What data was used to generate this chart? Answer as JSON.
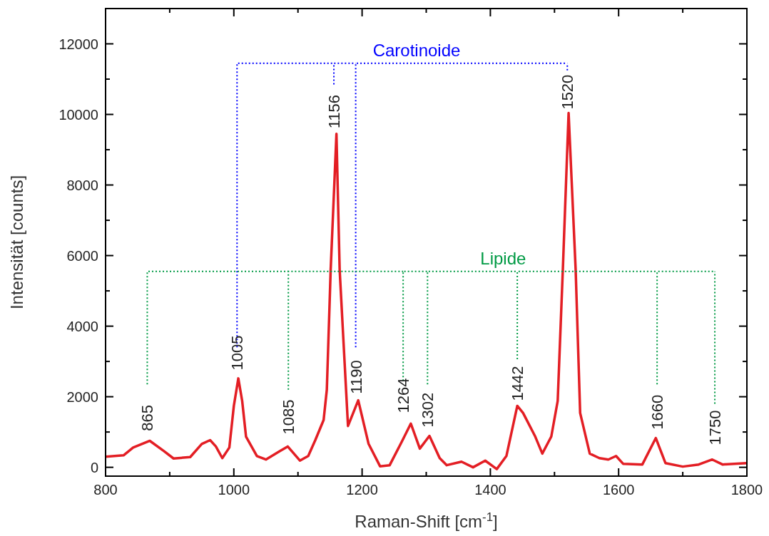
{
  "chart_data": {
    "type": "line",
    "xlabel": "Raman-Shift [cm$^{-1}$]",
    "ylabel": "Intensität [counts]",
    "xlim": [
      800,
      1800
    ],
    "ylim": [
      -250,
      13000
    ],
    "xticks": [
      800,
      {
        "value": 900,
        "label": null
      },
      1000,
      {
        "value": 1100,
        "label": null
      },
      1200,
      {
        "value": 1300,
        "label": null
      },
      1400,
      {
        "value": 1500,
        "label": null
      },
      1600,
      {
        "value": 1700,
        "label": null
      },
      1800
    ],
    "yticks": [
      0,
      {
        "value": 1000,
        "label": null
      },
      2000,
      {
        "value": 3000,
        "label": null
      },
      4000,
      {
        "value": 5000,
        "label": null
      },
      6000,
      {
        "value": 7000,
        "label": null
      },
      8000,
      {
        "value": 9000,
        "label": null
      },
      10000,
      {
        "value": 11000,
        "label": null
      },
      12000
    ],
    "marker": "none",
    "line_style": "solid",
    "series": [
      {
        "color": "#e31e24",
        "x": [
          800,
          828,
          843,
          869,
          891,
          906,
          932,
          950,
          963,
          972,
          982,
          993,
          1000,
          1007,
          1013,
          1019,
          1036,
          1050,
          1072,
          1084,
          1103,
          1116,
          1127,
          1140,
          1145,
          1151,
          1160,
          1165,
          1178,
          1194,
          1210,
          1228,
          1243,
          1262,
          1276,
          1290,
          1305,
          1321,
          1332,
          1355,
          1373,
          1392,
          1410,
          1425,
          1442,
          1451,
          1470,
          1481,
          1495,
          1505,
          1513,
          1522,
          1533,
          1540,
          1555,
          1570,
          1584,
          1596,
          1607,
          1637,
          1658,
          1673,
          1700,
          1725,
          1746,
          1762,
          1800
        ],
        "values": [
          300,
          340,
          560,
          750,
          460,
          250,
          290,
          660,
          770,
          590,
          260,
          560,
          1740,
          2520,
          1880,
          870,
          320,
          220,
          460,
          590,
          190,
          320,
          770,
          1340,
          2200,
          5600,
          9450,
          5600,
          1170,
          1900,
          670,
          30,
          60,
          730,
          1240,
          530,
          890,
          260,
          60,
          160,
          0,
          190,
          -50,
          320,
          1740,
          1540,
          870,
          390,
          870,
          1880,
          5600,
          10040,
          5600,
          1540,
          390,
          260,
          220,
          320,
          100,
          80,
          830,
          120,
          20,
          80,
          220,
          80,
          120
        ]
      }
    ],
    "annotations": [
      "865",
      "1005",
      "1085",
      "1156",
      "1190",
      "1264",
      "1302",
      "1442",
      "1520",
      "1660",
      "1750",
      "Carotinoide",
      "Lipide"
    ]
  }
}
